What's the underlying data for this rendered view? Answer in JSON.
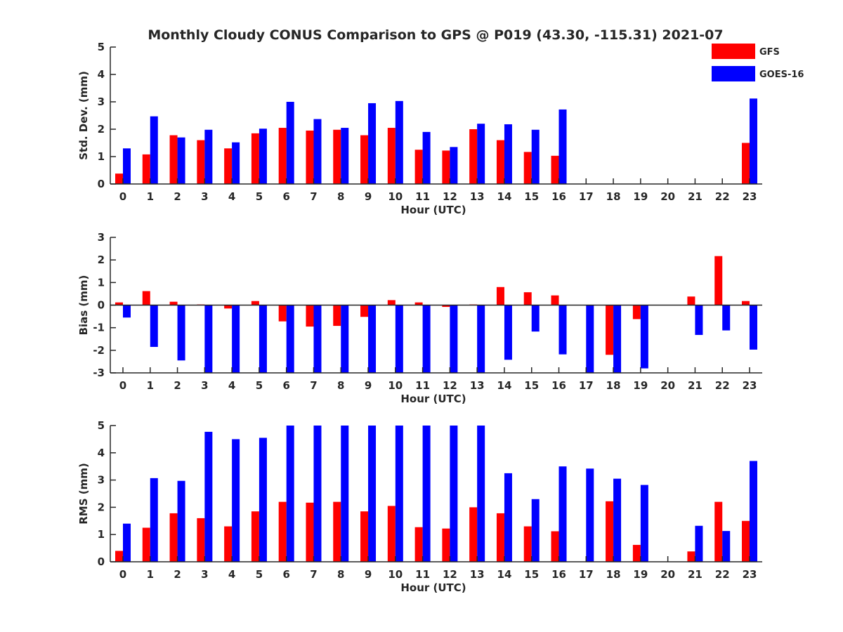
{
  "title": "Monthly Cloudy CONUS Comparison to GPS @ P019 (43.30, -115.31) 2021-07",
  "legend": {
    "placement": "top-right",
    "entries": [
      {
        "name": "GFS",
        "color": "#ff0000"
      },
      {
        "name": "GOES-16",
        "color": "#0000ff"
      }
    ]
  },
  "chart_data": [
    {
      "type": "bar",
      "xlabel": "Hour (UTC)",
      "ylabel": "Std. Dev. (mm)",
      "ylim": [
        0,
        5
      ],
      "yticks": [
        0,
        1,
        2,
        3,
        4,
        5
      ],
      "grid": false,
      "categories": [
        "0",
        "1",
        "2",
        "3",
        "4",
        "5",
        "6",
        "7",
        "8",
        "9",
        "10",
        "11",
        "12",
        "13",
        "14",
        "15",
        "16",
        "17",
        "18",
        "19",
        "20",
        "21",
        "22",
        "23"
      ],
      "series": [
        {
          "name": "GFS",
          "color": "#ff0000",
          "values": [
            0.38,
            1.08,
            1.78,
            1.6,
            1.3,
            1.85,
            2.05,
            1.95,
            1.98,
            1.78,
            2.05,
            1.25,
            1.22,
            2.0,
            1.6,
            1.17,
            1.03,
            0,
            0,
            0,
            0,
            0,
            0,
            1.5
          ]
        },
        {
          "name": "GOES-16",
          "color": "#0000ff",
          "values": [
            1.3,
            2.47,
            1.7,
            1.98,
            1.52,
            2.02,
            3.0,
            2.37,
            2.05,
            2.95,
            3.03,
            1.9,
            1.35,
            2.2,
            2.18,
            1.98,
            2.72,
            0,
            0,
            0,
            0,
            0,
            0,
            3.12
          ]
        }
      ]
    },
    {
      "type": "bar",
      "xlabel": "Hour (UTC)",
      "ylabel": "Bias (mm)",
      "ylim": [
        -3,
        3
      ],
      "yticks": [
        -3,
        -2,
        -1,
        0,
        1,
        2,
        3
      ],
      "grid": false,
      "categories": [
        "0",
        "1",
        "2",
        "3",
        "4",
        "5",
        "6",
        "7",
        "8",
        "9",
        "10",
        "11",
        "12",
        "13",
        "14",
        "15",
        "16",
        "17",
        "18",
        "19",
        "20",
        "21",
        "22",
        "23"
      ],
      "series": [
        {
          "name": "GFS",
          "color": "#ff0000",
          "values": [
            0.12,
            0.62,
            0.15,
            0.03,
            -0.15,
            0.18,
            -0.72,
            -0.95,
            -0.92,
            -0.52,
            0.22,
            0.12,
            -0.08,
            0.03,
            0.8,
            0.57,
            0.43,
            0,
            -2.2,
            -0.62,
            0,
            0.38,
            2.17,
            0.18
          ]
        },
        {
          "name": "GOES-16",
          "color": "#0000ff",
          "values": [
            -0.55,
            -1.85,
            -2.45,
            -3.0,
            -3.0,
            -3.0,
            -3.0,
            -3.0,
            -3.0,
            -3.0,
            -3.0,
            -3.0,
            -3.0,
            -3.0,
            -2.42,
            -1.17,
            -2.18,
            -3.0,
            -3.0,
            -2.8,
            0,
            -1.32,
            -1.12,
            -1.97
          ]
        }
      ]
    },
    {
      "type": "bar",
      "xlabel": "Hour (UTC)",
      "ylabel": "RMS (mm)",
      "ylim": [
        0,
        5
      ],
      "yticks": [
        0,
        1,
        2,
        3,
        4,
        5
      ],
      "grid": false,
      "categories": [
        "0",
        "1",
        "2",
        "3",
        "4",
        "5",
        "6",
        "7",
        "8",
        "9",
        "10",
        "11",
        "12",
        "13",
        "14",
        "15",
        "16",
        "17",
        "18",
        "19",
        "20",
        "21",
        "22",
        "23"
      ],
      "series": [
        {
          "name": "GFS",
          "color": "#ff0000",
          "values": [
            0.4,
            1.25,
            1.78,
            1.6,
            1.3,
            1.85,
            2.2,
            2.17,
            2.2,
            1.85,
            2.05,
            1.27,
            1.22,
            2.0,
            1.78,
            1.3,
            1.12,
            0,
            2.22,
            0.62,
            0,
            0.38,
            2.2,
            1.5
          ]
        },
        {
          "name": "GOES-16",
          "color": "#0000ff",
          "values": [
            1.4,
            3.07,
            2.97,
            4.77,
            4.5,
            4.55,
            5.0,
            5.0,
            5.0,
            5.0,
            5.0,
            5.0,
            5.0,
            5.0,
            3.25,
            2.3,
            3.5,
            3.42,
            3.05,
            2.82,
            0,
            1.32,
            1.13,
            3.7
          ]
        }
      ]
    }
  ]
}
